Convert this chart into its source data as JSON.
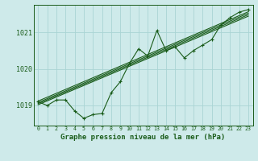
{
  "title": "Graphe pression niveau de la mer (hPa)",
  "bg_color": "#ceeaea",
  "grid_color": "#aad4d4",
  "line_color": "#1a5c1a",
  "text_color": "#1a5c1a",
  "xlim": [
    -0.5,
    23.5
  ],
  "ylim": [
    1018.45,
    1021.75
  ],
  "yticks": [
    1019,
    1020,
    1021
  ],
  "xticks": [
    0,
    1,
    2,
    3,
    4,
    5,
    6,
    7,
    8,
    9,
    10,
    11,
    12,
    13,
    14,
    15,
    16,
    17,
    18,
    19,
    20,
    21,
    22,
    23
  ],
  "main_x": [
    0,
    1,
    2,
    3,
    4,
    5,
    6,
    7,
    8,
    9,
    10,
    11,
    12,
    13,
    14,
    15,
    16,
    17,
    18,
    19,
    20,
    21,
    22,
    23
  ],
  "main_y": [
    1019.1,
    1019.0,
    1019.15,
    1019.15,
    1018.85,
    1018.65,
    1018.75,
    1018.78,
    1019.35,
    1019.65,
    1020.15,
    1020.55,
    1020.35,
    1021.05,
    1020.5,
    1020.6,
    1020.3,
    1020.5,
    1020.65,
    1020.8,
    1021.2,
    1021.4,
    1021.55,
    1021.62
  ],
  "trend_lines": [
    [
      1019.05,
      1021.48
    ],
    [
      1019.08,
      1021.52
    ],
    [
      1019.12,
      1021.56
    ],
    [
      1019.02,
      1021.44
    ]
  ]
}
